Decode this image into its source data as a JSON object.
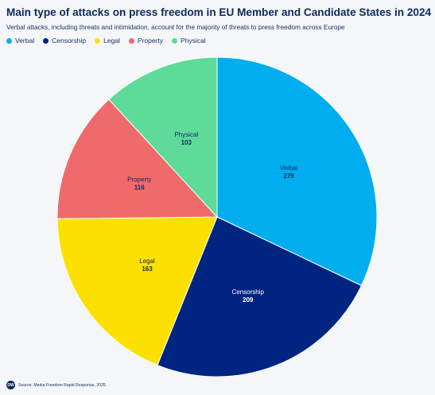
{
  "chart_data": {
    "type": "pie",
    "title": "Main type of attacks on press freedom in EU Member and Candidate States in 2024",
    "subtitle": "Verbal attacks, including threats and intimidation, account for the majority of threats to press freedom across Europe",
    "legend_position": "top-left",
    "slices": [
      {
        "name": "Verbal",
        "value": 279,
        "color": "#00aeef"
      },
      {
        "name": "Censorship",
        "value": 209,
        "color": "#002580"
      },
      {
        "name": "Legal",
        "value": 163,
        "color": "#fce100"
      },
      {
        "name": "Property",
        "value": 116,
        "color": "#ef6b6b"
      },
      {
        "name": "Physical",
        "value": 103,
        "color": "#5fdb99"
      }
    ]
  },
  "footer": {
    "logo_text": "DW",
    "source": "Source: Media Freedom Rapid Response, 2025"
  }
}
